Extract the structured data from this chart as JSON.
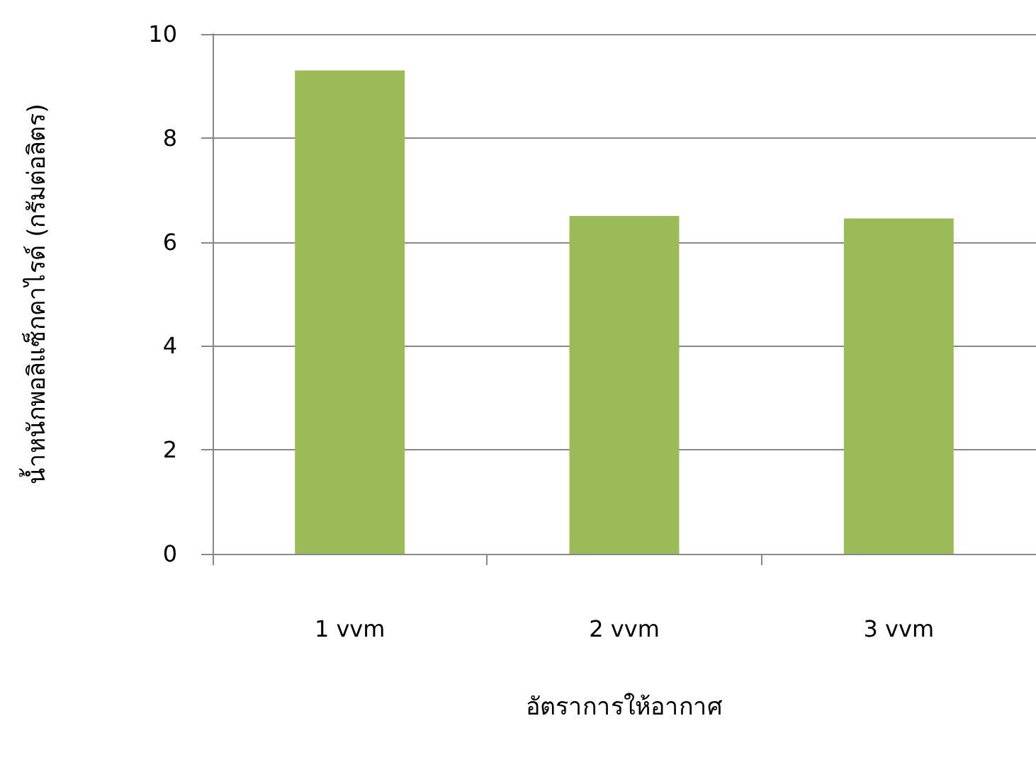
{
  "chart_data": {
    "type": "bar",
    "xlabel": "อัตราการให้อากาศ",
    "ylabel": "น้ำหนักพอลิแซ็กคาไรด์ (กรัมต่อลิตร)",
    "categories": [
      "1 vvm",
      "2 vvm",
      "3 vvm"
    ],
    "series": [
      {
        "color": "#9bbb59",
        "values": [
          9.3,
          6.5,
          6.45
        ]
      }
    ],
    "ylim": [
      0,
      10
    ],
    "yticks": [
      0,
      2,
      4,
      6,
      8,
      10
    ],
    "grid": "y"
  }
}
